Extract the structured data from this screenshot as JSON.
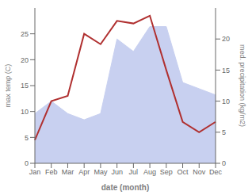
{
  "chart_data": {
    "type": "line",
    "categories": [
      "Jan",
      "Feb",
      "Mar",
      "Apr",
      "May",
      "Jun",
      "Jul",
      "Aug",
      "Sep",
      "Oct",
      "Nov",
      "Dec"
    ],
    "series": [
      {
        "type": "area",
        "color": "#c8d0f0",
        "axis": "y2",
        "values": [
          8.0,
          10.0,
          8.0,
          7.0,
          8.0,
          20.0,
          18.0,
          22.0,
          22.0,
          13.0,
          12.0,
          11.0
        ]
      },
      {
        "type": "line",
        "color": "#b03030",
        "values": [
          4.5,
          12.0,
          13.0,
          25.0,
          23.0,
          27.5,
          27.0,
          28.5,
          18.0,
          8.0,
          6.0,
          8.0
        ]
      }
    ],
    "xlabel": "date (month)",
    "ylabel": "max temp (C)",
    "y2label": "med. precipitation (kg/m2)",
    "ylim": [
      0,
      30
    ],
    "yticks": [
      0,
      5,
      10,
      15,
      20,
      25
    ],
    "y2lim": [
      0,
      25
    ],
    "y2ticks": [
      0,
      5,
      10,
      15,
      20
    ],
    "grid": false
  }
}
